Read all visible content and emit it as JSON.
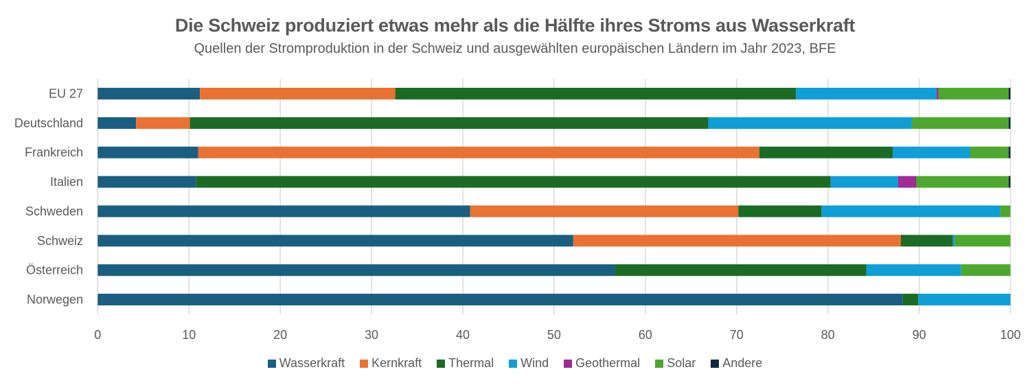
{
  "chart_data": {
    "type": "bar",
    "orientation": "horizontal",
    "stacked": true,
    "title": "Die Schweiz produziert etwas mehr als die Hälfte ihres Stroms aus Wasserkraft",
    "subtitle": "Quellen der Stromproduktion in der Schweiz und ausgewählten europäischen Ländern im Jahr 2023, BFE",
    "xlabel": "",
    "ylabel": "",
    "xlim": [
      0,
      100
    ],
    "xticks": [
      "0",
      "10",
      "20",
      "30",
      "40",
      "50",
      "60",
      "70",
      "80",
      "90",
      "100"
    ],
    "grid": true,
    "legend_position": "bottom",
    "categories": [
      "EU 27",
      "Deutschland",
      "Frankreich",
      "Italien",
      "Schweden",
      "Schweiz",
      "Österreich",
      "Norwegen"
    ],
    "series": [
      {
        "name": "Wasserkraft",
        "color": "#1A5E82",
        "values": [
          11.2,
          4.2,
          11.0,
          10.8,
          40.8,
          52.1,
          56.7,
          88.2
        ]
      },
      {
        "name": "Kernkraft",
        "color": "#E97132",
        "values": [
          21.4,
          5.9,
          61.5,
          0,
          29.4,
          35.9,
          0,
          0
        ]
      },
      {
        "name": "Thermal",
        "color": "#1B6B25",
        "values": [
          43.9,
          56.8,
          14.6,
          69.5,
          9.1,
          5.7,
          27.5,
          1.7
        ]
      },
      {
        "name": "Wind",
        "color": "#0F9ED5",
        "values": [
          15.4,
          22.3,
          8.5,
          7.4,
          19.6,
          0.2,
          10.4,
          10.1
        ]
      },
      {
        "name": "Geothermal",
        "color": "#A02B93",
        "values": [
          0.2,
          0,
          0,
          2.0,
          0,
          0,
          0,
          0
        ]
      },
      {
        "name": "Solar",
        "color": "#4EA72E",
        "values": [
          7.7,
          10.6,
          4.2,
          10.1,
          1.1,
          6.1,
          5.4,
          0
        ]
      },
      {
        "name": "Andere",
        "color": "#0E2841",
        "values": [
          0.2,
          0.2,
          0.2,
          0.2,
          0,
          0,
          0,
          0
        ]
      }
    ]
  }
}
